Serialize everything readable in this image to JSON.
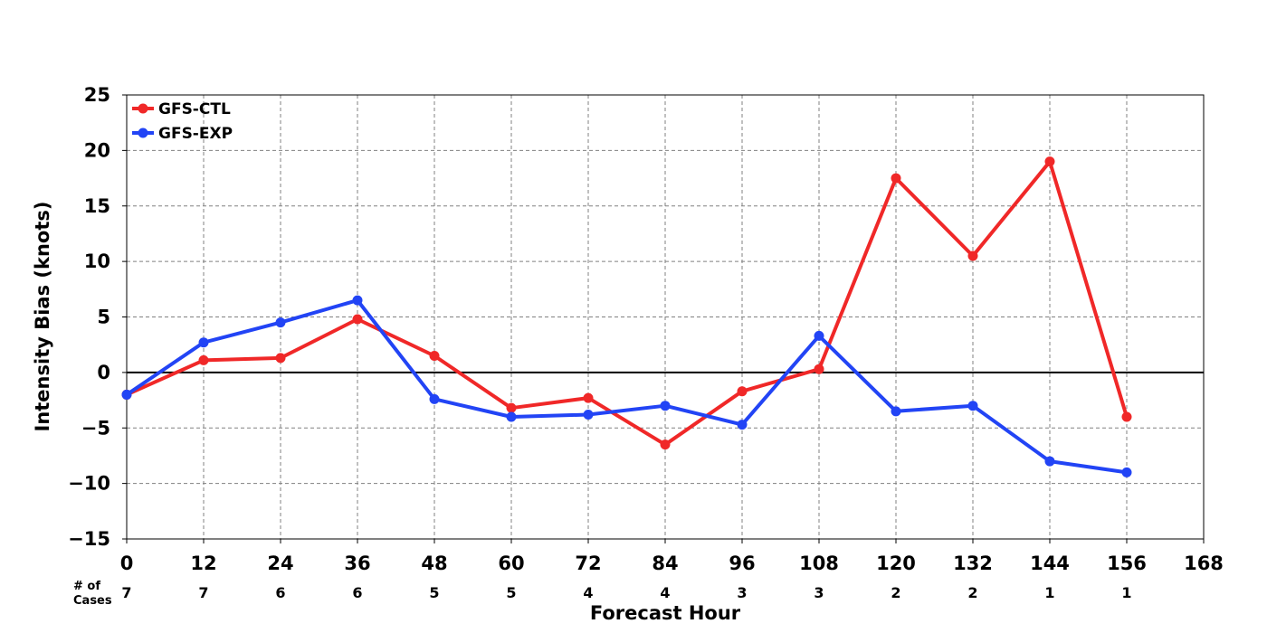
{
  "chart_data": {
    "type": "line",
    "title": "",
    "xlabel": "Forecast Hour",
    "ylabel": "Intensity Bias (knots)",
    "xlim": [
      0,
      168
    ],
    "ylim": [
      -15,
      25
    ],
    "x_ticks": [
      0,
      12,
      24,
      36,
      48,
      60,
      72,
      84,
      96,
      108,
      120,
      132,
      144,
      156,
      168
    ],
    "y_ticks": [
      -15,
      -10,
      -5,
      0,
      5,
      10,
      15,
      20,
      25
    ],
    "grid": true,
    "legend_position": "top-left",
    "cases_label": "# of\nCases",
    "cases_x": [
      0,
      12,
      24,
      36,
      48,
      60,
      72,
      84,
      96,
      108,
      120,
      132,
      144,
      156
    ],
    "cases": [
      7,
      7,
      6,
      6,
      5,
      5,
      4,
      4,
      3,
      3,
      2,
      2,
      1,
      1
    ],
    "series": [
      {
        "name": "GFS-CTL",
        "color": "#f02828",
        "x": [
          0,
          12,
          24,
          36,
          48,
          60,
          72,
          84,
          96,
          108,
          120,
          132,
          144,
          156
        ],
        "values": [
          -2.0,
          1.1,
          1.3,
          4.8,
          1.5,
          -3.2,
          -2.3,
          -6.5,
          -1.7,
          0.3,
          17.5,
          10.5,
          19.0,
          -4.0
        ]
      },
      {
        "name": "GFS-EXP",
        "color": "#2244f5",
        "x": [
          0,
          12,
          24,
          36,
          48,
          60,
          72,
          84,
          96,
          108,
          120,
          132,
          144,
          156
        ],
        "values": [
          -2.0,
          2.7,
          4.5,
          6.5,
          -2.4,
          -4.0,
          -3.8,
          -3.0,
          -4.7,
          3.3,
          -3.5,
          -3.0,
          -8.0,
          -9.0
        ]
      }
    ]
  }
}
